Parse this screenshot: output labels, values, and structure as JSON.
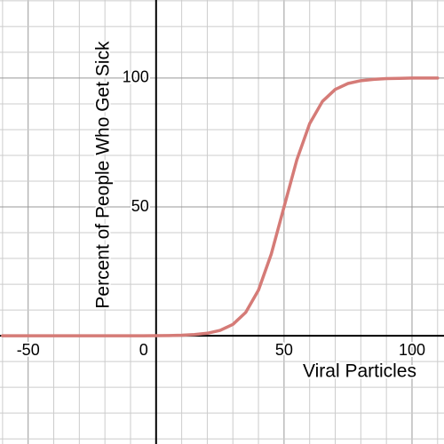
{
  "chart_data": {
    "type": "line",
    "x_label": "Viral Particles",
    "y_label": "Percent of People Who Get Sick",
    "x": [
      -60,
      -55,
      -50,
      -45,
      -40,
      -35,
      -30,
      -25,
      -20,
      -15,
      -10,
      -5,
      0,
      5,
      10,
      15,
      20,
      25,
      30,
      35,
      40,
      45,
      50,
      55,
      60,
      65,
      70,
      75,
      80,
      85,
      90,
      95,
      100,
      105,
      110
    ],
    "series": [
      {
        "color": "#d57b77",
        "values": [
          0,
          0,
          0,
          0,
          0,
          0,
          0,
          0,
          0,
          0,
          0,
          0,
          0.05,
          0.1,
          0.21,
          0.46,
          0.98,
          2.09,
          4.41,
          9.05,
          17.7,
          31.7,
          50,
          68.3,
          82.3,
          90.95,
          95.6,
          97.9,
          99.0,
          99.5,
          99.8,
          99.9,
          100,
          100,
          100
        ]
      }
    ],
    "xlim": [
      -61,
      112.5
    ],
    "ylim": [
      -42,
      130.3
    ],
    "xticks": [
      -50,
      0,
      50,
      100
    ],
    "yticks": [
      50,
      100
    ],
    "xgrid": [
      -60,
      -50,
      -40,
      -30,
      -20,
      -10,
      10,
      20,
      30,
      40,
      50,
      60,
      70,
      80,
      90,
      100,
      110
    ],
    "ygrid": [
      -40,
      -30,
      -20,
      -10,
      10,
      20,
      30,
      40,
      50,
      60,
      70,
      80,
      90,
      100,
      110,
      120,
      130
    ],
    "grid": true
  }
}
